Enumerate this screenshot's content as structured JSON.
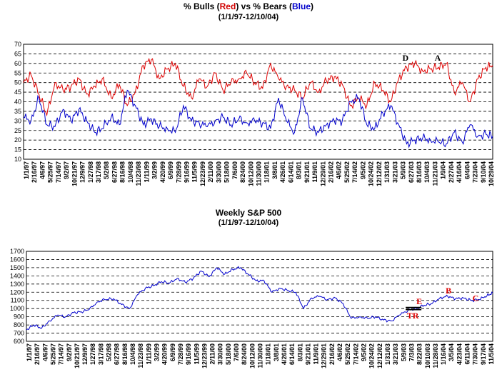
{
  "chart1": {
    "title_a": "% Bulls (",
    "title_red": "Red",
    "title_b": ") vs % Bears (",
    "title_blue": "Blue",
    "title_c": ")",
    "subtitle": "(1/1/97-12/10/04)"
  },
  "chart2": {
    "title": "Weekly S&P 500",
    "subtitle": "(1/1/97-12/10/04)"
  },
  "colors": {
    "bulls": "#dd0000",
    "bears": "#0000cc",
    "sp500": "#0000cc",
    "annot_red": "#dd0000",
    "annot_black": "#000000"
  },
  "chart_data": [
    {
      "type": "line",
      "title": "% Bulls (Red) vs % Bears (Blue)",
      "subtitle": "(1/1/97-12/10/04)",
      "ylim": [
        10,
        70
      ],
      "yticks": [
        10,
        15,
        20,
        25,
        30,
        35,
        40,
        45,
        50,
        55,
        60,
        65,
        70
      ],
      "xlim": [
        "1997-01-01",
        "2004-12-10"
      ],
      "grid": true,
      "xticks": [
        "1/1/97",
        "2/16/97",
        "4/6/97",
        "5/25/97",
        "7/14/97",
        "9/2/97",
        "10/21/97",
        "12/9/97",
        "1/27/98",
        "3/17/98",
        "5/2/98",
        "6/27/98",
        "8/16/98",
        "10/4/98",
        "11/23/98",
        "1/11/99",
        "3/2/99",
        "4/20/99",
        "6/9/99",
        "7/28/99",
        "9/16/99",
        "11/5/99",
        "12/23/99",
        "2/11/00",
        "3/30/00",
        "5/18/00",
        "7/6/00",
        "8/24/00",
        "10/12/00",
        "11/30/00",
        "1/18/01",
        "3/8/01",
        "4/26/01",
        "6/14/01",
        "8/3/01",
        "9/21/01",
        "11/9/01",
        "12/29/01",
        "2/16/02",
        "4/6/02",
        "5/25/02",
        "7/14/02",
        "9/5/02",
        "10/24/02",
        "12/12/02",
        "1/31/03",
        "3/21/03",
        "5/9/03",
        "6/27/03",
        "8/16/03",
        "10/4/03",
        "11/21/03",
        "1/9/04",
        "2/27/04",
        "4/16/04",
        "6/4/04",
        "7/23/04",
        "9/10/04",
        "10/29/04"
      ],
      "series": [
        {
          "name": "Bulls",
          "x": [
            "1997-01-01",
            "1997-02-16",
            "1997-04-06",
            "1997-05-25",
            "1997-07-14",
            "1997-09-02",
            "1997-10-21",
            "1997-12-09",
            "1998-01-27",
            "1998-03-17",
            "1998-05-02",
            "1998-06-27",
            "1998-08-16",
            "1998-10-04",
            "1998-11-23",
            "1999-01-11",
            "1999-03-02",
            "1999-04-20",
            "1999-06-09",
            "1999-07-28",
            "1999-09-16",
            "1999-11-05",
            "1999-12-23",
            "2000-02-11",
            "2000-03-30",
            "2000-05-18",
            "2000-07-06",
            "2000-08-24",
            "2000-10-12",
            "2000-11-30",
            "2001-01-18",
            "2001-03-08",
            "2001-04-26",
            "2001-06-14",
            "2001-08-03",
            "2001-09-21",
            "2001-11-09",
            "2001-12-29",
            "2002-02-16",
            "2002-04-06",
            "2002-05-25",
            "2002-07-14",
            "2002-09-05",
            "2002-10-24",
            "2002-12-12",
            "2003-01-31",
            "2003-03-21",
            "2003-05-09",
            "2003-06-27",
            "2003-08-16",
            "2003-10-04",
            "2003-11-21",
            "2004-01-09",
            "2004-02-27",
            "2004-04-16",
            "2004-06-04",
            "2004-07-23",
            "2004-09-10",
            "2004-10-29",
            "2004-12-10"
          ],
          "values": [
            50,
            54,
            44,
            33,
            50,
            46,
            48,
            52,
            44,
            48,
            52,
            42,
            49,
            38,
            45,
            59,
            62,
            52,
            57,
            60,
            48,
            42,
            52,
            48,
            55,
            46,
            50,
            52,
            55,
            50,
            47,
            60,
            52,
            48,
            46,
            42,
            50,
            45,
            51,
            53,
            49,
            38,
            42,
            38,
            50,
            46,
            40,
            52,
            58,
            60,
            56,
            57,
            58,
            60,
            45,
            50,
            40,
            52,
            58,
            59
          ]
        },
        {
          "name": "Bears",
          "x": [
            "1997-01-01",
            "1997-02-16",
            "1997-04-06",
            "1997-05-25",
            "1997-07-14",
            "1997-09-02",
            "1997-10-21",
            "1997-12-09",
            "1998-01-27",
            "1998-03-17",
            "1998-05-02",
            "1998-06-27",
            "1998-08-16",
            "1998-10-04",
            "1998-11-23",
            "1999-01-11",
            "1999-03-02",
            "1999-04-20",
            "1999-06-09",
            "1999-07-28",
            "1999-09-16",
            "1999-11-05",
            "1999-12-23",
            "2000-02-11",
            "2000-03-30",
            "2000-05-18",
            "2000-07-06",
            "2000-08-24",
            "2000-10-12",
            "2000-11-30",
            "2001-01-18",
            "2001-03-08",
            "2001-04-26",
            "2001-06-14",
            "2001-08-03",
            "2001-09-21",
            "2001-11-09",
            "2001-12-29",
            "2002-02-16",
            "2002-04-06",
            "2002-05-25",
            "2002-07-14",
            "2002-09-05",
            "2002-10-24",
            "2002-12-12",
            "2003-01-31",
            "2003-03-21",
            "2003-05-09",
            "2003-06-27",
            "2003-08-16",
            "2003-10-04",
            "2003-11-21",
            "2004-01-09",
            "2004-02-27",
            "2004-04-16",
            "2004-06-04",
            "2004-07-23",
            "2004-09-10",
            "2004-10-29",
            "2004-12-10"
          ],
          "values": [
            32,
            30,
            42,
            28,
            27,
            36,
            30,
            36,
            30,
            24,
            26,
            32,
            28,
            46,
            38,
            28,
            31,
            27,
            26,
            24,
            38,
            30,
            29,
            27,
            30,
            32,
            28,
            31,
            29,
            30,
            29,
            26,
            42,
            30,
            24,
            42,
            26,
            24,
            28,
            30,
            30,
            40,
            42,
            28,
            26,
            34,
            38,
            28,
            18,
            20,
            21,
            20,
            19,
            18,
            24,
            19,
            28,
            22,
            23,
            22
          ]
        }
      ],
      "annotations": [
        {
          "label": "D",
          "x": "2003-06-20",
          "y": 60
        },
        {
          "label": "A",
          "x": "2004-01-05",
          "y": 60
        }
      ]
    },
    {
      "type": "line",
      "title": "Weekly S&P 500",
      "subtitle": "(1/1/97-12/10/04)",
      "ylim": [
        600,
        1700
      ],
      "yticks": [
        600,
        700,
        800,
        900,
        1000,
        1100,
        1200,
        1300,
        1400,
        1500,
        1600,
        1700
      ],
      "xlim": [
        "1997-01-01",
        "2004-12-10"
      ],
      "grid": true,
      "xticks": [
        "1/1/97",
        "2/16/97",
        "4/6/97",
        "5/25/97",
        "7/14/97",
        "9/2/97",
        "10/21/97",
        "12/9/97",
        "1/27/98",
        "3/17/98",
        "5/2/98",
        "6/27/98",
        "8/16/98",
        "10/4/98",
        "11/23/98",
        "1/11/99",
        "3/2/99",
        "4/20/99",
        "6/9/99",
        "7/28/99",
        "9/16/99",
        "11/5/99",
        "12/23/99",
        "2/11/00",
        "3/30/00",
        "5/18/00",
        "7/6/00",
        "8/24/00",
        "10/12/00",
        "11/30/00",
        "1/18/01",
        "3/8/01",
        "4/26/01",
        "6/14/01",
        "8/3/01",
        "9/21/01",
        "11/9/01",
        "12/29/01",
        "2/16/02",
        "4/6/02",
        "5/25/02",
        "7/14/02",
        "9/5/02",
        "10/24/02",
        "12/12/02",
        "1/31/03",
        "3/21/03",
        "5/9/03",
        "7/3/03",
        "8/22/03",
        "10/10/03",
        "11/28/03",
        "1/16/04",
        "3/5/04",
        "4/23/04",
        "6/11/04",
        "7/30/04",
        "9/17/04",
        "11/5/04"
      ],
      "series": [
        {
          "name": "S&P 500",
          "x": [
            "1997-01-01",
            "1997-02-16",
            "1997-04-06",
            "1997-05-25",
            "1997-07-14",
            "1997-09-02",
            "1997-10-21",
            "1997-12-09",
            "1998-01-27",
            "1998-03-17",
            "1998-05-02",
            "1998-06-27",
            "1998-08-16",
            "1998-10-04",
            "1998-11-23",
            "1999-01-11",
            "1999-03-02",
            "1999-04-20",
            "1999-06-09",
            "1999-07-28",
            "1999-09-16",
            "1999-11-05",
            "1999-12-23",
            "2000-02-11",
            "2000-03-30",
            "2000-05-18",
            "2000-07-06",
            "2000-08-24",
            "2000-10-12",
            "2000-11-30",
            "2001-01-18",
            "2001-03-08",
            "2001-04-26",
            "2001-06-14",
            "2001-08-03",
            "2001-09-21",
            "2001-11-09",
            "2001-12-29",
            "2002-02-16",
            "2002-04-06",
            "2002-05-25",
            "2002-07-14",
            "2002-09-05",
            "2002-10-24",
            "2002-12-12",
            "2003-01-31",
            "2003-03-21",
            "2003-05-09",
            "2003-07-03",
            "2003-08-22",
            "2003-10-10",
            "2003-11-28",
            "2004-01-16",
            "2004-03-05",
            "2004-04-23",
            "2004-06-11",
            "2004-07-30",
            "2004-09-17",
            "2004-11-05",
            "2004-12-10"
          ],
          "values": [
            740,
            800,
            760,
            850,
            920,
            900,
            950,
            960,
            990,
            1080,
            1110,
            1120,
            1050,
            1000,
            1170,
            1250,
            1280,
            1330,
            1310,
            1370,
            1320,
            1370,
            1460,
            1390,
            1500,
            1420,
            1480,
            1500,
            1420,
            1340,
            1340,
            1200,
            1250,
            1220,
            1200,
            1000,
            1130,
            1150,
            1110,
            1130,
            1060,
            880,
            900,
            880,
            900,
            860,
            850,
            920,
            980,
            1000,
            1040,
            1060,
            1130,
            1150,
            1120,
            1130,
            1100,
            1110,
            1160,
            1190
          ]
        }
      ],
      "annotations": [
        {
          "label": "E",
          "x": "2003-09-10",
          "y": 1020
        },
        {
          "label": "B",
          "x": "2004-03-10",
          "y": 1150
        },
        {
          "label": "C",
          "x": "2004-08-25",
          "y": 1060
        },
        {
          "label": "TR",
          "x": "2003-08-01",
          "y": 960
        }
      ]
    }
  ]
}
